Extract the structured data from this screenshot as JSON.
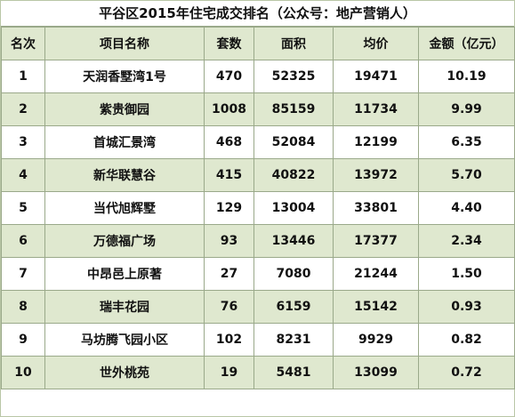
{
  "title": "平谷区2015年住宅成交排名（公众号：地产营销人）",
  "columns": [
    "名次",
    "项目名称",
    "套数",
    "面积",
    "均价",
    "金额（亿元）"
  ],
  "rows": [
    {
      "rank": "1",
      "name": "天润香墅湾1号",
      "units": "470",
      "area": "52325",
      "avg_price": "19471",
      "amount": "10.19"
    },
    {
      "rank": "2",
      "name": "紫贵御园",
      "units": "1008",
      "area": "85159",
      "avg_price": "11734",
      "amount": "9.99"
    },
    {
      "rank": "3",
      "name": "首城汇景湾",
      "units": "468",
      "area": "52084",
      "avg_price": "12199",
      "amount": "6.35"
    },
    {
      "rank": "4",
      "name": "新华联慧谷",
      "units": "415",
      "area": "40822",
      "avg_price": "13972",
      "amount": "5.70"
    },
    {
      "rank": "5",
      "name": "当代旭辉墅",
      "units": "129",
      "area": "13004",
      "avg_price": "33801",
      "amount": "4.40"
    },
    {
      "rank": "6",
      "name": "万德福广场",
      "units": "93",
      "area": "13446",
      "avg_price": "17377",
      "amount": "2.34"
    },
    {
      "rank": "7",
      "name": "中昂邑上原著",
      "units": "27",
      "area": "7080",
      "avg_price": "21244",
      "amount": "1.50"
    },
    {
      "rank": "8",
      "name": "瑞丰花园",
      "units": "76",
      "area": "6159",
      "avg_price": "15142",
      "amount": "0.93"
    },
    {
      "rank": "9",
      "name": "马坊腾飞园小区",
      "units": "102",
      "area": "8231",
      "avg_price": "9929",
      "amount": "0.82"
    },
    {
      "rank": "10",
      "name": "世外桃苑",
      "units": "19",
      "area": "5481",
      "avg_price": "13099",
      "amount": "0.72"
    }
  ],
  "colors": {
    "header_bg": "#dfe8cf",
    "stripe_bg": "#dfe8cf",
    "border": "#9aa98a"
  }
}
